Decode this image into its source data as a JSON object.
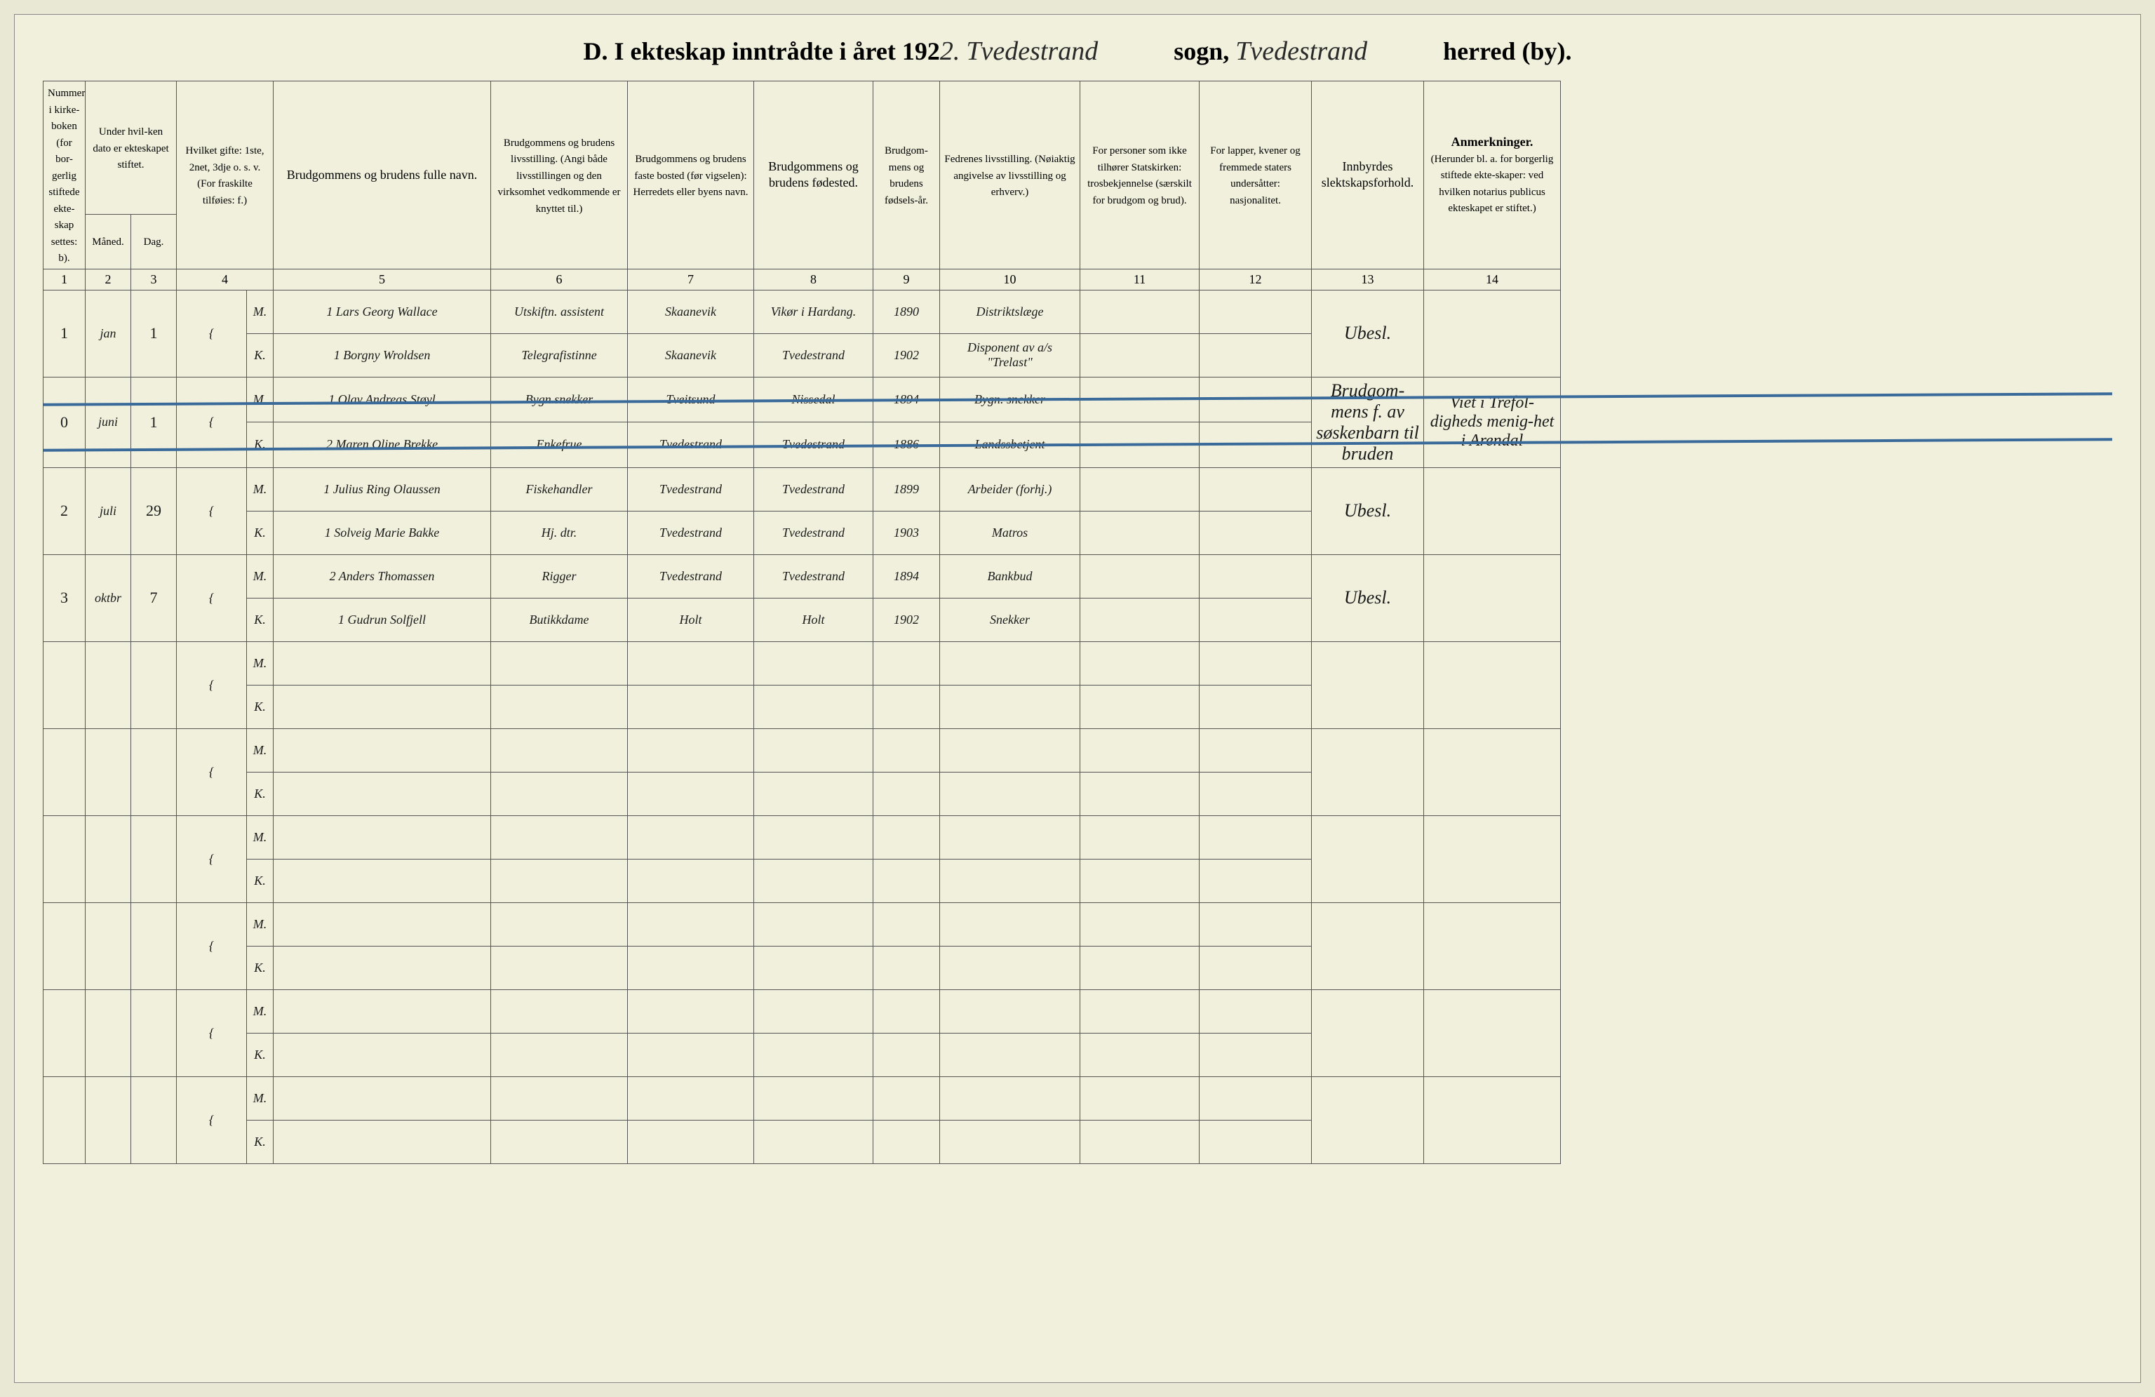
{
  "title": {
    "prefix": "D.   I ekteskap inntrådte i året 192",
    "year_suffix": "2.",
    "parish": "Tvedestrand",
    "sogn_label": "sogn,",
    "district": "Tvedestrand",
    "herred_label": "herred (by)."
  },
  "headers": {
    "col1": "Nummer i kirke-boken (for bor-gerlig stiftede ekte-skap settes: b).",
    "col2_top": "Under hvil-ken dato er ekteskapet stiftet.",
    "col2a": "Måned.",
    "col2b": "Dag.",
    "col3": "Hvilket gifte: 1ste, 2net, 3dje o. s. v. (For fraskilte tilføies: f.)",
    "col4": "Brudgommens og brudens fulle navn.",
    "col5": "Brudgommens og brudens livsstilling. (Angi både livsstillingen og den virksomhet vedkommende er knyttet til.)",
    "col6": "Brudgommens og brudens faste bosted (før vigselen): Herredets eller byens navn.",
    "col7": "Brudgommens og brudens fødested.",
    "col8": "Brudgom-mens og brudens fødsels-år.",
    "col9": "Fedrenes livsstilling. (Nøiaktig angivelse av livsstilling og erhverv.)",
    "col10": "For personer som ikke tilhører Statskirken: trosbekjennelse (særskilt for brudgom og brud).",
    "col11": "For lapper, kvener og fremmede staters undersåtter: nasjonalitet.",
    "col12": "Innbyrdes slektskapsforhold.",
    "col13_title": "Anmerkninger.",
    "col13_sub": "(Herunder bl. a. for borgerlig stiftede ekte-skaper: ved hvilken notarius publicus ekteskapet er stiftet.)"
  },
  "colnums": [
    "1",
    "2",
    "3",
    "4",
    "5",
    "6",
    "7",
    "8",
    "9",
    "10",
    "11",
    "12",
    "13",
    "14"
  ],
  "rows": [
    {
      "num": "1",
      "month": "jan",
      "day": "1",
      "m": {
        "gifte": "1",
        "name": "Lars Georg Wallace",
        "occ": "Utskiftn. assistent",
        "res": "Skaanevik",
        "birth": "Vikør i Hardang.",
        "year": "1890",
        "father": "Distriktslæge",
        "church": "",
        "nat": "",
        "rel": "Ubesl.",
        "remark": ""
      },
      "k": {
        "gifte": "1",
        "name": "Borgny Wroldsen",
        "occ": "Telegrafistinne",
        "res": "Skaanevik",
        "birth": "Tvedestrand",
        "year": "1902",
        "father": "Disponent av a/s \"Trelast\"",
        "church": "",
        "nat": "",
        "rel": "",
        "remark": ""
      },
      "struck": false
    },
    {
      "num": "0",
      "month": "juni",
      "day": "1",
      "m": {
        "gifte": "1",
        "name": "Olav Andreas Støyl",
        "occ": "Bygn.snekker",
        "res": "Tveitsund",
        "birth": "Nissedal",
        "year": "1894",
        "father": "Bygn. snekker",
        "church": "",
        "nat": "",
        "rel": "Brudgom-mens f. av søskenbarn til bruden",
        "remark": "Viet i Trefol-digheds menig-het i Arendal"
      },
      "k": {
        "gifte": "2",
        "name": "Maren Oline Brekke",
        "occ": "Enkefrue",
        "res": "Tvedestrand",
        "birth": "Tvedestrand",
        "year": "1886",
        "father": "Landssbetjent",
        "church": "",
        "nat": "",
        "rel": "",
        "remark": ""
      },
      "struck": true
    },
    {
      "num": "2",
      "month": "juli",
      "day": "29",
      "m": {
        "gifte": "1",
        "name": "Julius Ring Olaussen",
        "occ": "Fiskehandler",
        "res": "Tvedestrand",
        "birth": "Tvedestrand",
        "year": "1899",
        "father": "Arbeider (forhj.)",
        "church": "",
        "nat": "",
        "rel": "Ubesl.",
        "remark": ""
      },
      "k": {
        "gifte": "1",
        "name": "Solveig Marie Bakke",
        "occ": "Hj. dtr.",
        "res": "Tvedestrand",
        "birth": "Tvedestrand",
        "year": "1903",
        "father": "Matros",
        "church": "",
        "nat": "",
        "rel": "",
        "remark": ""
      },
      "struck": false
    },
    {
      "num": "3",
      "month": "oktbr",
      "day": "7",
      "m": {
        "gifte": "2",
        "name": "Anders Thomassen",
        "occ": "Rigger",
        "res": "Tvedestrand",
        "birth": "Tvedestrand",
        "year": "1894",
        "father": "Bankbud",
        "church": "",
        "nat": "",
        "rel": "Ubesl.",
        "remark": ""
      },
      "k": {
        "gifte": "1",
        "name": "Gudrun Solfjell",
        "occ": "Butikkdame",
        "res": "Holt",
        "birth": "Holt",
        "year": "1902",
        "father": "Snekker",
        "church": "",
        "nat": "",
        "rel": "",
        "remark": ""
      },
      "struck": false
    }
  ],
  "empty_pairs": 6,
  "mk_labels": {
    "m": "M.",
    "k": "K."
  }
}
